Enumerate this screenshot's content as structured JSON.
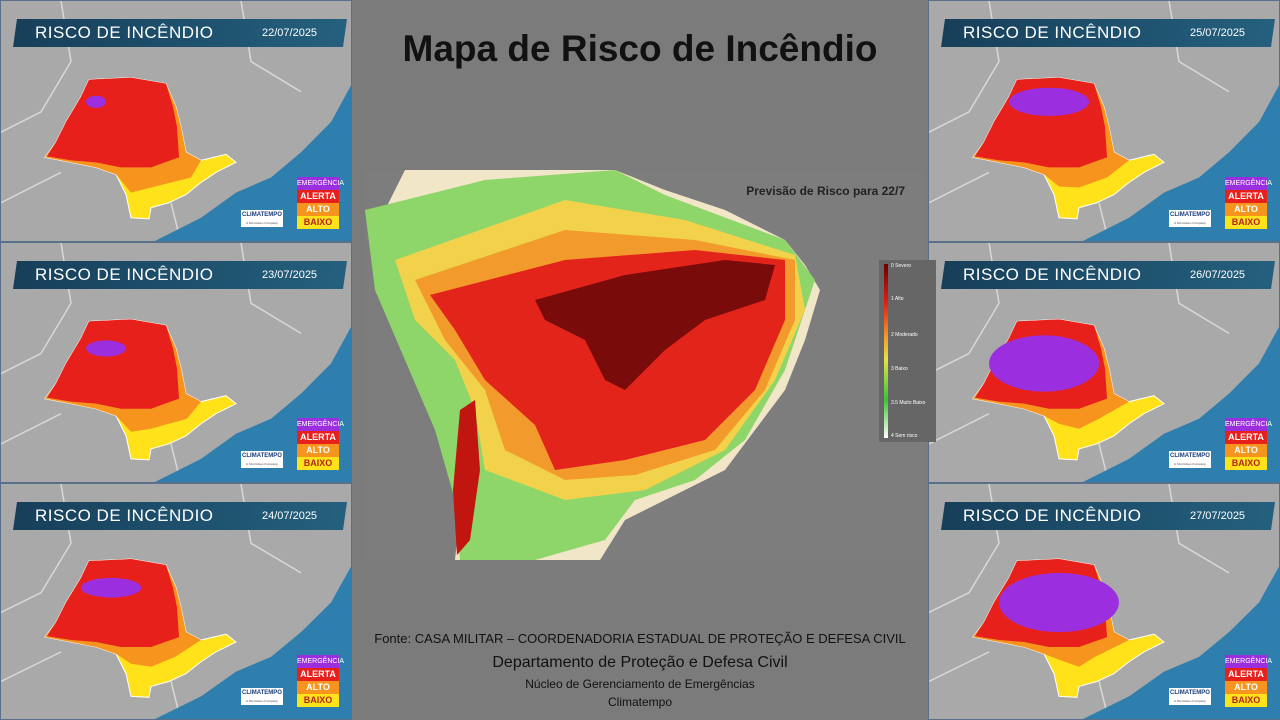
{
  "title": "Mapa de Risco de Incêndio",
  "main_map": {
    "label": "Previsão de Risco para  22/7",
    "scale": [
      "0 Severo",
      "1 Alto",
      "2 Moderado",
      "3 Baixo",
      "3.5 Muito Baixo",
      "4 Sem risco"
    ]
  },
  "panels": [
    {
      "title": "RISCO DE INCÊNDIO",
      "date": "22/07/2025"
    },
    {
      "title": "RISCO DE INCÊNDIO",
      "date": "23/07/2025"
    },
    {
      "title": "RISCO DE INCÊNDIO",
      "date": "24/07/2025"
    },
    {
      "title": "RISCO DE INCÊNDIO",
      "date": "25/07/2025"
    },
    {
      "title": "RISCO DE INCÊNDIO",
      "date": "26/07/2025"
    },
    {
      "title": "RISCO DE INCÊNDIO",
      "date": "27/07/2025"
    }
  ],
  "legend": {
    "emergencia": "EMERGÊNCIA",
    "alerta": "ALERTA",
    "alto": "ALTO",
    "baixo": "BAIXO"
  },
  "logo": {
    "name": "CLIMATEMPO",
    "sub": "A StormGeo Company"
  },
  "footer": {
    "source": "Fonte: CASA MILITAR – COORDENADORIA ESTADUAL DE PROTEÇÃO E DEFESA CIVIL",
    "dept": "Departamento de Proteção e Defesa Civil",
    "nucleo": "Núcleo de Gerenciamento de Emergências",
    "climatempo": "Climatempo"
  },
  "colors": {
    "emergencia": "#9b2fe0",
    "alerta": "#e8201c",
    "alto": "#f7941d",
    "baixo": "#ffe21a",
    "ocean": "#2f7fae"
  }
}
